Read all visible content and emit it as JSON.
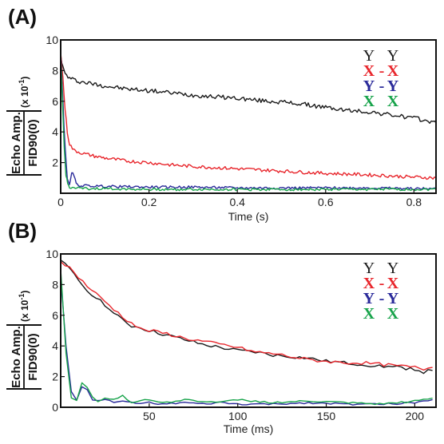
{
  "colors": {
    "black": "#1a1a1a",
    "red": "#e8262c",
    "blue": "#2a2a9a",
    "green": "#17a34a"
  },
  "ylabel": {
    "numerator": "Echo Amp.",
    "denominator": "FID90(0)",
    "multiplier": "(x 10",
    "exponent": "-1",
    "close": ")"
  },
  "chart_data": [
    {
      "panel": "(A)",
      "type": "line",
      "xlabel": "Time (s)",
      "xlim": [
        0,
        0.85
      ],
      "ylim": [
        0,
        10
      ],
      "xticks": [
        "0",
        "0.2",
        "0.4",
        "0.6",
        "0.8"
      ],
      "xtick_values": [
        0,
        0.2,
        0.4,
        0.6,
        0.8
      ],
      "yticks": [
        "2",
        "4",
        "6",
        "8",
        "10"
      ],
      "ytick_values": [
        2,
        4,
        6,
        8,
        10
      ],
      "legend_position": "top-right",
      "legend": [
        {
          "left": "Y",
          "sep": "",
          "right": "Y",
          "color": "black"
        },
        {
          "left": "X",
          "sep": "-",
          "right": "X",
          "color": "red"
        },
        {
          "left": "Y",
          "sep": "-",
          "right": "Y",
          "color": "blue"
        },
        {
          "left": "X",
          "sep": "",
          "right": "X",
          "color": "green"
        }
      ],
      "series": [
        {
          "name": "Y Y",
          "color": "black",
          "x": [
            0,
            0.005,
            0.01,
            0.02,
            0.04,
            0.06,
            0.08,
            0.1,
            0.15,
            0.2,
            0.25,
            0.3,
            0.35,
            0.4,
            0.45,
            0.5,
            0.55,
            0.6,
            0.65,
            0.7,
            0.75,
            0.8,
            0.85
          ],
          "y": [
            9.0,
            8.2,
            7.8,
            7.5,
            7.3,
            7.2,
            7.1,
            7.0,
            6.8,
            6.7,
            6.55,
            6.4,
            6.3,
            6.2,
            6.05,
            5.95,
            5.8,
            5.6,
            5.4,
            5.3,
            5.1,
            4.9,
            4.6
          ]
        },
        {
          "name": "X -X",
          "color": "red",
          "x": [
            0,
            0.005,
            0.01,
            0.015,
            0.02,
            0.03,
            0.05,
            0.08,
            0.1,
            0.15,
            0.2,
            0.25,
            0.3,
            0.4,
            0.5,
            0.6,
            0.7,
            0.8,
            0.85
          ],
          "y": [
            9.2,
            7.5,
            5.5,
            4.0,
            3.2,
            2.8,
            2.6,
            2.4,
            2.3,
            2.1,
            2.0,
            1.85,
            1.75,
            1.6,
            1.45,
            1.3,
            1.2,
            1.05,
            1.0
          ]
        },
        {
          "name": "Y -Y",
          "color": "blue",
          "x": [
            0,
            0.005,
            0.01,
            0.015,
            0.02,
            0.025,
            0.03,
            0.035,
            0.04,
            0.05,
            0.1,
            0.2,
            0.3,
            0.4,
            0.5,
            0.6,
            0.7,
            0.8,
            0.85
          ],
          "y": [
            9.2,
            6.0,
            3.0,
            1.0,
            0.5,
            1.3,
            1.2,
            0.6,
            0.5,
            0.5,
            0.45,
            0.4,
            0.4,
            0.35,
            0.35,
            0.35,
            0.35,
            0.3,
            0.3
          ]
        },
        {
          "name": "X X",
          "color": "green",
          "x": [
            0,
            0.004,
            0.008,
            0.012,
            0.016,
            0.02,
            0.03,
            0.05,
            0.1,
            0.2,
            0.3,
            0.4,
            0.5,
            0.6,
            0.7,
            0.8,
            0.85
          ],
          "y": [
            9.0,
            6.0,
            3.0,
            1.2,
            0.6,
            0.4,
            0.35,
            0.3,
            0.3,
            0.25,
            0.25,
            0.25,
            0.25,
            0.25,
            0.25,
            0.25,
            0.25
          ]
        }
      ]
    },
    {
      "panel": "(B)",
      "type": "line",
      "xlabel": "Time (ms)",
      "xlim": [
        0,
        212
      ],
      "ylim": [
        0,
        10
      ],
      "xticks": [
        "50",
        "100",
        "150",
        "200"
      ],
      "xtick_values": [
        50,
        100,
        150,
        200
      ],
      "yticks": [
        "0",
        "2",
        "4",
        "6",
        "8",
        "10"
      ],
      "ytick_values": [
        0,
        2,
        4,
        6,
        8,
        10
      ],
      "legend_position": "top-right",
      "legend": [
        {
          "left": "Y",
          "sep": "",
          "right": "Y",
          "color": "black"
        },
        {
          "left": "X",
          "sep": "-",
          "right": "X",
          "color": "red"
        },
        {
          "left": "Y",
          "sep": "-",
          "right": "Y",
          "color": "blue"
        },
        {
          "left": "X",
          "sep": "",
          "right": "X",
          "color": "green"
        }
      ],
      "series": [
        {
          "name": "Y Y",
          "color": "black",
          "x": [
            0,
            5,
            10,
            15,
            20,
            25,
            30,
            35,
            40,
            45,
            50,
            60,
            70,
            80,
            90,
            100,
            110,
            120,
            130,
            140,
            150,
            160,
            170,
            180,
            190,
            200,
            205,
            210
          ],
          "y": [
            9.6,
            9.0,
            8.3,
            7.6,
            7.2,
            6.7,
            6.1,
            5.7,
            5.3,
            5.2,
            5.0,
            4.7,
            4.4,
            4.1,
            3.9,
            3.7,
            3.6,
            3.4,
            3.3,
            3.2,
            3.0,
            2.9,
            2.8,
            2.7,
            2.6,
            2.5,
            2.3,
            2.4
          ]
        },
        {
          "name": "X -X",
          "color": "red",
          "x": [
            0,
            5,
            10,
            15,
            20,
            25,
            30,
            35,
            40,
            45,
            50,
            60,
            70,
            80,
            90,
            100,
            110,
            120,
            130,
            140,
            150,
            160,
            170,
            180,
            190,
            200,
            205,
            210
          ],
          "y": [
            9.5,
            9.1,
            8.5,
            7.9,
            7.4,
            6.9,
            6.4,
            5.9,
            5.5,
            5.1,
            5.0,
            4.8,
            4.5,
            4.3,
            4.1,
            3.9,
            3.6,
            3.5,
            3.3,
            3.1,
            3.0,
            2.9,
            2.9,
            2.8,
            2.7,
            2.6,
            2.5,
            2.6
          ]
        },
        {
          "name": "Y -Y",
          "color": "blue",
          "x": [
            0,
            3,
            6,
            9,
            12,
            15,
            18,
            21,
            25,
            30,
            35,
            40,
            50,
            60,
            70,
            80,
            90,
            100,
            120,
            140,
            160,
            180,
            200,
            210
          ],
          "y": [
            8.5,
            4.0,
            1.0,
            0.5,
            1.3,
            1.2,
            0.5,
            0.4,
            0.5,
            0.3,
            0.4,
            0.3,
            0.3,
            0.2,
            0.3,
            0.2,
            0.3,
            0.2,
            0.2,
            0.3,
            0.2,
            0.2,
            0.3,
            0.5
          ]
        },
        {
          "name": "X X",
          "color": "green",
          "x": [
            0,
            3,
            6,
            9,
            12,
            15,
            18,
            21,
            25,
            30,
            35,
            40,
            50,
            60,
            70,
            80,
            90,
            100,
            120,
            140,
            160,
            180,
            200,
            210
          ],
          "y": [
            9.0,
            3.5,
            0.6,
            0.4,
            1.6,
            1.3,
            0.7,
            0.4,
            0.6,
            0.5,
            0.8,
            0.3,
            0.5,
            0.3,
            0.5,
            0.4,
            0.3,
            0.5,
            0.3,
            0.4,
            0.3,
            0.2,
            0.4,
            0.6
          ]
        }
      ]
    }
  ]
}
